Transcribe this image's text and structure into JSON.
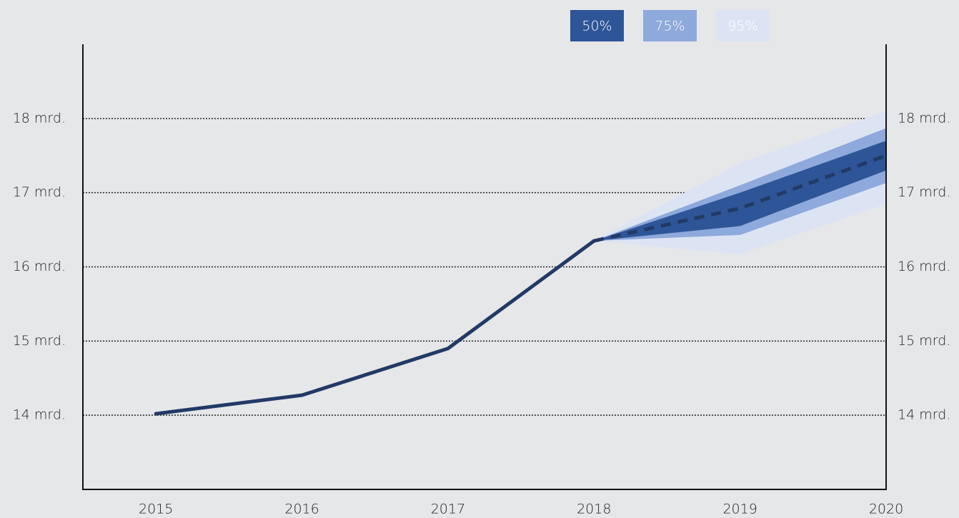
{
  "chart_data": {
    "type": "fan",
    "x": [
      2015,
      2016,
      2017,
      2018,
      2019,
      2020
    ],
    "xlim": [
      2014.5,
      2020
    ],
    "xticks": [
      2015,
      2016,
      2017,
      2018,
      2019,
      2020
    ],
    "ylim": [
      13,
      19
    ],
    "yticks": [
      {
        "value": 14,
        "label": "14 mrd."
      },
      {
        "value": 15,
        "label": "15 mrd."
      },
      {
        "value": 16,
        "label": "16 mrd."
      },
      {
        "value": 17,
        "label": "17 mrd."
      },
      {
        "value": 18,
        "label": "18 mrd."
      }
    ],
    "grid": true,
    "bands": [
      {
        "name": "95%",
        "color": "#dce4f4",
        "lower": [
          null,
          null,
          null,
          16.35,
          16.17,
          16.85
        ],
        "upper": [
          null,
          null,
          null,
          16.35,
          17.4,
          18.1
        ]
      },
      {
        "name": "75%",
        "color": "#8ea9db",
        "lower": [
          null,
          null,
          null,
          16.35,
          16.43,
          17.13
        ],
        "upper": [
          null,
          null,
          null,
          16.35,
          17.1,
          17.87
        ]
      },
      {
        "name": "50%",
        "color": "#2e5597",
        "lower": [
          null,
          null,
          null,
          16.35,
          16.55,
          17.3
        ],
        "upper": [
          null,
          null,
          null,
          16.35,
          17.0,
          17.7
        ]
      }
    ],
    "series": [
      {
        "color": "#213a66",
        "values": [
          14.02,
          14.27,
          14.9,
          16.35,
          null,
          null
        ]
      },
      {
        "color": "#213a66",
        "dashed": true,
        "values": [
          null,
          null,
          null,
          16.35,
          16.79,
          17.5
        ]
      }
    ]
  }
}
